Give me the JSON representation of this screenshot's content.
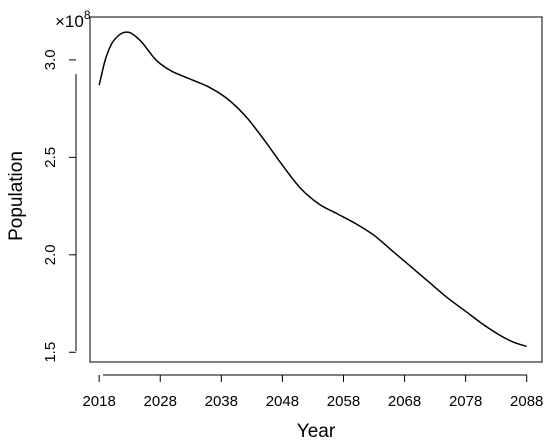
{
  "chart_data": {
    "type": "line",
    "xlabel": "Year",
    "ylabel": "Population",
    "multiplier": {
      "base": "×10",
      "exponent": "8"
    },
    "x_ticks": [
      "2018",
      "2028",
      "2038",
      "2048",
      "2058",
      "2068",
      "2078",
      "2088"
    ],
    "y_ticks": [
      "1.5",
      "2.0",
      "2.5",
      "3.0"
    ],
    "xlim": [
      2016.5,
      2090.5
    ],
    "ylim": [
      1.45,
      3.22
    ],
    "grid": false,
    "legend": "none",
    "line_color": "#000000",
    "series": [
      {
        "x": [
          2018,
          2019,
          2020,
          2021,
          2022,
          2023,
          2024,
          2025,
          2026,
          2027,
          2028,
          2030,
          2033,
          2036,
          2039,
          2042,
          2045,
          2048,
          2051,
          2054,
          2057,
          2060,
          2063,
          2066,
          2069,
          2072,
          2075,
          2078,
          2081,
          2084,
          2086,
          2088
        ],
        "y": [
          2.87,
          3.0,
          3.08,
          3.12,
          3.14,
          3.14,
          3.12,
          3.09,
          3.05,
          3.01,
          2.98,
          2.94,
          2.9,
          2.86,
          2.8,
          2.71,
          2.59,
          2.46,
          2.34,
          2.26,
          2.21,
          2.16,
          2.1,
          2.02,
          1.94,
          1.86,
          1.78,
          1.71,
          1.64,
          1.58,
          1.55,
          1.53
        ]
      }
    ]
  }
}
